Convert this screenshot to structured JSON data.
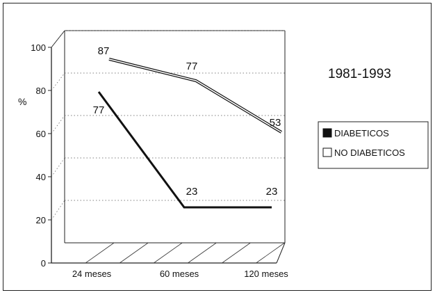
{
  "chart_data": {
    "type": "line",
    "title": "1981-1993",
    "ylabel": "%",
    "xlabel": "",
    "categories": [
      "24 meses",
      "60 meses",
      "120 meses"
    ],
    "ylim": [
      0,
      100
    ],
    "yticks": [
      "0",
      "20",
      "40",
      "60",
      "80",
      "100"
    ],
    "series": [
      {
        "name": "DIABETICOS",
        "values": [
          77,
          23,
          23
        ],
        "labels": [
          "77",
          "23",
          "23"
        ],
        "color": "#111111",
        "style": "solid-thick"
      },
      {
        "name": "NO DIABETICOS",
        "values": [
          87,
          77,
          53
        ],
        "labels": [
          "87",
          "77",
          "53"
        ],
        "color": "#ffffff",
        "style": "hollow"
      }
    ],
    "legend_position": "right",
    "grid": true,
    "perspective": "3d"
  }
}
